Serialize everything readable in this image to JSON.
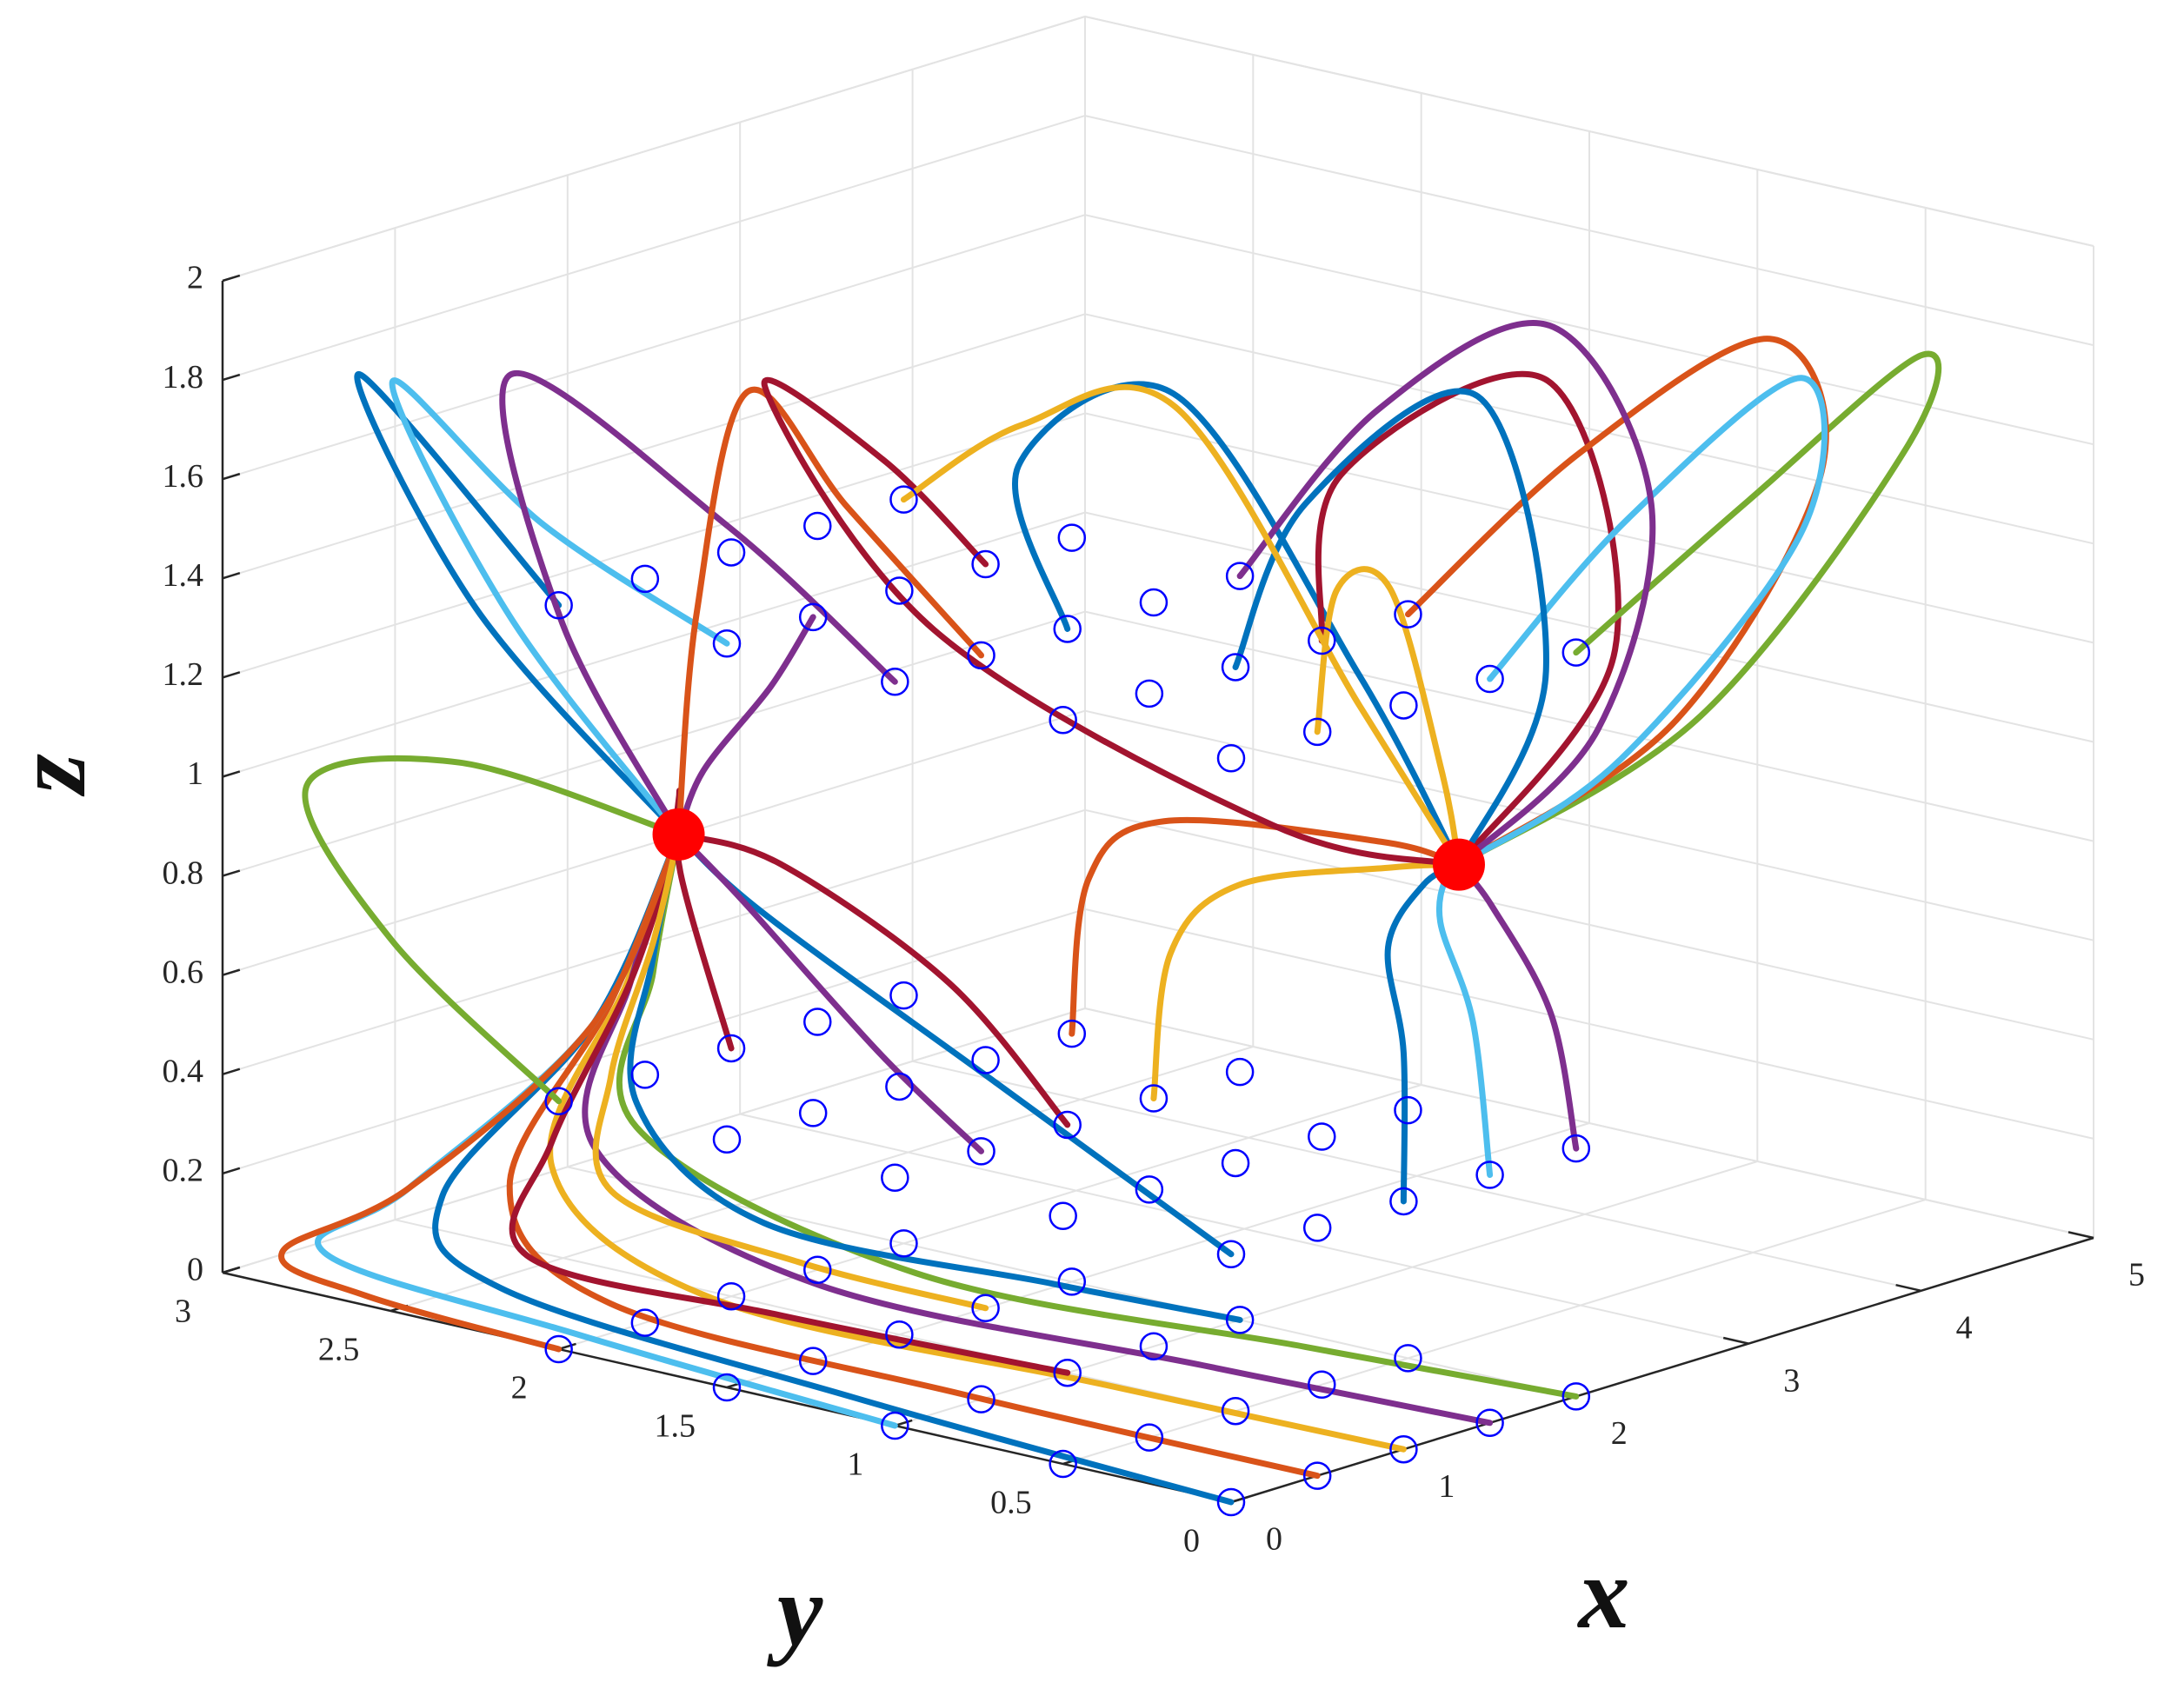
{
  "chart_data": {
    "type": "line3d",
    "xlabel": "x",
    "ylabel": "y",
    "zlabel": "z",
    "xlim": [
      0,
      5
    ],
    "ylim": [
      0,
      3
    ],
    "zlim": [
      0,
      2
    ],
    "xticks": [
      0,
      1,
      2,
      3,
      4,
      5
    ],
    "yticks": [
      0,
      0.5,
      1,
      1.5,
      2,
      2.5,
      3
    ],
    "zticks": [
      0,
      0.2,
      0.4,
      0.6,
      0.8,
      1,
      1.2,
      1.4,
      1.6,
      1.8,
      2
    ],
    "grid": true,
    "series": [
      {
        "color": "#0072bd",
        "x": [
          0,
          0.15,
          0.25,
          0.3,
          0.4,
          0.5
        ],
        "y": [
          0,
          1.2,
          2.3,
          2.5,
          2.1,
          1.9
        ],
        "z": [
          0,
          0.01,
          0.05,
          0.2,
          0.6,
          1
        ]
      },
      {
        "color": "#d95319",
        "x": [
          0.5,
          0.4,
          0.3,
          0.3,
          0.4,
          0.5
        ],
        "y": [
          0,
          1,
          2,
          2.3,
          2.05,
          1.9
        ],
        "z": [
          0,
          0.02,
          0.06,
          0.25,
          0.65,
          1
        ]
      },
      {
        "color": "#edb120",
        "x": [
          1,
          0.8,
          0.5,
          0.35,
          0.4,
          0.5
        ],
        "y": [
          0,
          0.8,
          1.8,
          2.2,
          2,
          1.9
        ],
        "z": [
          0,
          0.03,
          0.08,
          0.3,
          0.7,
          1
        ]
      },
      {
        "color": "#7e2f8e",
        "x": [
          1.5,
          1.2,
          0.7,
          0.4,
          0.42,
          0.5
        ],
        "y": [
          0,
          0.7,
          1.6,
          2.1,
          2,
          1.9
        ],
        "z": [
          0,
          0.04,
          0.12,
          0.35,
          0.7,
          1
        ]
      },
      {
        "color": "#77ac30",
        "x": [
          2,
          1.6,
          0.9,
          0.45,
          0.45,
          0.5
        ],
        "y": [
          0,
          0.6,
          1.4,
          2,
          1.95,
          1.9
        ],
        "z": [
          0,
          0.05,
          0.15,
          0.4,
          0.72,
          1
        ]
      },
      {
        "color": "#4dbeee",
        "x": [
          0,
          0.1,
          0.2,
          0.3,
          0.4,
          0.5
        ],
        "y": [
          1,
          2,
          2.8,
          2.6,
          2.1,
          1.9
        ],
        "z": [
          0,
          0.02,
          0.05,
          0.2,
          0.6,
          1
        ]
      },
      {
        "color": "#a2142f",
        "x": [
          1,
          0.7,
          0.4,
          0.35,
          0.42,
          0.5
        ],
        "y": [
          1,
          1.7,
          2.3,
          2.2,
          2,
          1.9
        ],
        "z": [
          0,
          0.04,
          0.1,
          0.35,
          0.7,
          1
        ]
      },
      {
        "color": "#0072bd",
        "x": [
          2,
          1.5,
          0.8,
          0.45,
          0.45,
          0.5
        ],
        "y": [
          1,
          1.3,
          1.8,
          2,
          1.95,
          1.9
        ],
        "z": [
          0,
          0.08,
          0.2,
          0.45,
          0.75,
          1
        ]
      },
      {
        "color": "#d95319",
        "x": [
          0,
          0.05,
          0.15,
          0.3,
          0.4,
          0.5
        ],
        "y": [
          2,
          2.6,
          2.9,
          2.6,
          2.1,
          1.9
        ],
        "z": [
          0,
          0.01,
          0.04,
          0.2,
          0.6,
          1
        ]
      },
      {
        "color": "#edb120",
        "x": [
          1.5,
          1,
          0.5,
          0.4,
          0.45,
          0.5
        ],
        "y": [
          1.5,
          1.8,
          2.1,
          2.05,
          1.95,
          1.9
        ],
        "z": [
          0,
          0.1,
          0.25,
          0.5,
          0.78,
          1
        ]
      },
      {
        "color": "#77ac30",
        "x": [
          0,
          0,
          0,
          0.2,
          0.5
        ],
        "y": [
          2,
          2.5,
          2.75,
          2.4,
          1.9
        ],
        "z": [
          0.5,
          0.75,
          1.02,
          1.1,
          1
        ]
      },
      {
        "color": "#0072bd",
        "x": [
          0,
          0.2,
          0.4,
          0.5
        ],
        "y": [
          0,
          0.8,
          1.6,
          1.9
        ],
        "z": [
          0.5,
          0.7,
          0.9,
          1
        ]
      },
      {
        "color": "#7e2f8e",
        "x": [
          0.5,
          0.5,
          0.48,
          0.5
        ],
        "y": [
          1,
          1.3,
          1.7,
          1.9
        ],
        "z": [
          0.5,
          0.65,
          0.9,
          1
        ]
      },
      {
        "color": "#0072bd",
        "x": [
          1,
          1,
          1.3,
          1.8,
          2.1
        ],
        "y": [
          0,
          0,
          0.2,
          0.35,
          0.4
        ],
        "z": [
          0.5,
          0.8,
          0.95,
          1,
          1
        ]
      },
      {
        "color": "#4dbeee",
        "x": [
          1.5,
          1.5,
          1.7,
          2,
          2.1
        ],
        "y": [
          0,
          0.05,
          0.25,
          0.38,
          0.4
        ],
        "z": [
          0.5,
          0.8,
          0.95,
          1,
          1
        ]
      },
      {
        "color": "#7e2f8e",
        "x": [
          2,
          2.05,
          2.1,
          2.1
        ],
        "y": [
          0,
          0.1,
          0.3,
          0.4
        ],
        "z": [
          0.5,
          0.75,
          0.93,
          1
        ]
      },
      {
        "color": "#edb120",
        "x": [
          1.5,
          1.5,
          1.6,
          1.9,
          2.1
        ],
        "y": [
          1,
          0.95,
          0.8,
          0.5,
          0.4
        ],
        "z": [
          0.5,
          0.8,
          0.95,
          1,
          1
        ]
      },
      {
        "color": "#d95319",
        "x": [
          2,
          2,
          1.95,
          2.05,
          2.1
        ],
        "y": [
          1.5,
          1.45,
          1.2,
          0.6,
          0.4
        ],
        "z": [
          0.5,
          0.82,
          0.98,
          1.02,
          1
        ]
      },
      {
        "color": "#a2142f",
        "x": [
          1,
          0.9,
          0.7,
          0.5
        ],
        "y": [
          1,
          1.3,
          1.7,
          1.9
        ],
        "z": [
          0.5,
          0.75,
          0.95,
          1
        ]
      },
      {
        "color": "#a2142f",
        "x": [
          1,
          0.9,
          0.7,
          0.5
        ],
        "y": [
          2,
          2.1,
          2,
          1.9
        ],
        "z": [
          0.5,
          0.85,
          1.05,
          1
        ]
      },
      {
        "color": "#0072bd",
        "x": [
          0,
          0.4,
          0.3,
          0.5
        ],
        "y": [
          2,
          2.8,
          2.4,
          1.9
        ],
        "z": [
          1.5,
          1.8,
          1.4,
          1
        ]
      },
      {
        "color": "#4dbeee",
        "x": [
          0,
          0.3,
          0.4,
          0.3,
          0.5
        ],
        "y": [
          1.5,
          2.2,
          2.7,
          2.3,
          1.9
        ],
        "z": [
          1.5,
          1.6,
          1.8,
          1.4,
          1
        ]
      },
      {
        "color": "#7e2f8e",
        "x": [
          0,
          0.2,
          0.5,
          0.4,
          0.5
        ],
        "y": [
          1,
          1.6,
          2.4,
          2.2,
          1.9
        ],
        "z": [
          1.5,
          1.7,
          1.85,
          1.4,
          1
        ]
      },
      {
        "color": "#7e2f8e",
        "x": [
          0.5,
          0.45,
          0.45,
          0.5
        ],
        "y": [
          1.5,
          1.6,
          1.8,
          1.9
        ],
        "z": [
          1.5,
          1.35,
          1.15,
          1
        ]
      },
      {
        "color": "#d95319",
        "x": [
          0.5,
          0.7,
          0.9,
          0.8,
          0.5
        ],
        "y": [
          1,
          1.5,
          1.9,
          2,
          1.9
        ],
        "z": [
          1.5,
          1.7,
          1.85,
          1.4,
          1
        ]
      },
      {
        "color": "#0072bd",
        "x": [
          1,
          1.3,
          2.2,
          2.3,
          2.1
        ],
        "y": [
          1,
          1.3,
          1.3,
          0.8,
          0.4
        ],
        "z": [
          1.5,
          1.75,
          1.8,
          1.3,
          1
        ]
      },
      {
        "color": "#a2142f",
        "x": [
          1.5,
          2,
          3,
          3.2,
          2.1
        ],
        "y": [
          0.5,
          0.7,
          0.6,
          0.5,
          0.4
        ],
        "z": [
          1.5,
          1.75,
          1.85,
          1.3,
          1
        ]
      },
      {
        "color": "#77ac30",
        "x": [
          2,
          3,
          4.2,
          4.5,
          3.5,
          2.1
        ],
        "y": [
          0,
          0,
          0.1,
          0.3,
          0.4,
          0.4
        ],
        "z": [
          1.5,
          1.7,
          1.85,
          1.6,
          1.15,
          1
        ]
      },
      {
        "color": "#d95319",
        "x": [
          2,
          3,
          4,
          4.3,
          3.4,
          2.1
        ],
        "y": [
          0.5,
          0.5,
          0.45,
          0.45,
          0.42,
          0.4
        ],
        "z": [
          1.5,
          1.72,
          1.85,
          1.55,
          1.15,
          1
        ]
      },
      {
        "color": "#4dbeee",
        "x": [
          1.5,
          2.4,
          3.6,
          3.9,
          3,
          2.1
        ],
        "y": [
          0,
          0.05,
          0.15,
          0.3,
          0.38,
          0.4
        ],
        "z": [
          1.5,
          1.72,
          1.86,
          1.5,
          1.12,
          1
        ]
      },
      {
        "color": "#7e2f8e",
        "x": [
          2,
          2.8,
          3.6,
          3.8,
          3.1,
          2.1
        ],
        "y": [
          1,
          1,
          0.9,
          0.7,
          0.5,
          0.4
        ],
        "z": [
          1.5,
          1.75,
          1.85,
          1.5,
          1.15,
          1
        ]
      },
      {
        "color": "#0072bd",
        "x": [
          1,
          1.6,
          2.6,
          2.8,
          2.1
        ],
        "y": [
          0.5,
          0.6,
          0.6,
          0.5,
          0.4
        ],
        "z": [
          1.5,
          1.75,
          1.86,
          1.3,
          1
        ]
      },
      {
        "color": "#edb120",
        "x": [
          0.5,
          1,
          1.7,
          2,
          2.1
        ],
        "y": [
          0,
          0.2,
          0.4,
          0.4,
          0.4
        ],
        "z": [
          1.5,
          1.7,
          1.6,
          1.2,
          1
        ]
      },
      {
        "color": "#a2142f",
        "x": [
          1.5,
          1.3,
          1,
          1.2,
          1.8,
          2.1
        ],
        "y": [
          1.5,
          1.7,
          1.9,
          1.5,
          0.8,
          0.4
        ],
        "z": [
          1.5,
          1.7,
          1.85,
          1.4,
          1.05,
          1
        ]
      },
      {
        "color": "#edb120",
        "x": [
          2,
          2.3,
          2.6,
          2.5,
          2.1
        ],
        "y": [
          2,
          1.8,
          1.5,
          0.9,
          0.4
        ],
        "z": [
          1.5,
          1.65,
          1.7,
          1.2,
          1
        ]
      }
    ],
    "initial_points": {
      "color": "#0000ff",
      "x": [
        0,
        0.5,
        1,
        1.5,
        2,
        0,
        0.5,
        1,
        1.5,
        2,
        0,
        0.5,
        1,
        1.5,
        2,
        0,
        0.5,
        1,
        1.5,
        2,
        0,
        0.5,
        1,
        1.5,
        2,
        0,
        0.5,
        1,
        1.5,
        2,
        0,
        0.5,
        1,
        1.5,
        2,
        0,
        0.5,
        1,
        1.5,
        2,
        0,
        0.5,
        1,
        1.5,
        2,
        0,
        0.5,
        1,
        1.5,
        2,
        0,
        0.5,
        1,
        1.5,
        2,
        0,
        0.5,
        1,
        1.5,
        2,
        0,
        0.5,
        1,
        1.5,
        2,
        0,
        0.5,
        1,
        1.5,
        2,
        0,
        0.5,
        1,
        1.5,
        2
      ],
      "y": [
        0,
        0,
        0,
        0,
        0,
        0.5,
        0.5,
        0.5,
        0.5,
        0.5,
        1,
        1,
        1,
        1,
        1,
        1.5,
        1.5,
        1.5,
        1.5,
        1.5,
        2,
        2,
        2,
        2,
        2,
        0,
        0,
        0,
        0,
        0,
        0.5,
        0.5,
        0.5,
        0.5,
        0.5,
        1,
        1,
        1,
        1,
        1,
        1.5,
        1.5,
        1.5,
        1.5,
        1.5,
        2,
        2,
        2,
        2,
        2,
        0,
        0,
        0,
        0,
        0,
        0.5,
        0.5,
        0.5,
        0.5,
        0.5,
        1,
        1,
        1,
        1,
        1,
        1.5,
        1.5,
        1.5,
        1.5,
        1.5,
        2,
        2,
        2,
        2,
        2
      ],
      "z": [
        0,
        0,
        0,
        0,
        0,
        0,
        0,
        0,
        0,
        0,
        0,
        0,
        0,
        0,
        0,
        0,
        0,
        0,
        0,
        0,
        0,
        0,
        0,
        0,
        0,
        0.5,
        0.5,
        0.5,
        0.5,
        0.5,
        0.5,
        0.5,
        0.5,
        0.5,
        0.5,
        0.5,
        0.5,
        0.5,
        0.5,
        0.5,
        0.5,
        0.5,
        0.5,
        0.5,
        0.5,
        0.5,
        0.5,
        0.5,
        0.5,
        0.5,
        1.5,
        1.5,
        1.5,
        1.5,
        1.5,
        1.5,
        1.5,
        1.5,
        1.5,
        1.5,
        1.5,
        1.5,
        1.5,
        1.5,
        1.5,
        1.5,
        1.5,
        1.5,
        1.5,
        1.5,
        1.5,
        1.5,
        1.5,
        1.5,
        1.5
      ]
    },
    "equilibria": {
      "color": "#ff0000",
      "x": [
        0.5,
        2.1
      ],
      "y": [
        1.9,
        0.4
      ],
      "z": [
        1,
        1
      ]
    }
  }
}
